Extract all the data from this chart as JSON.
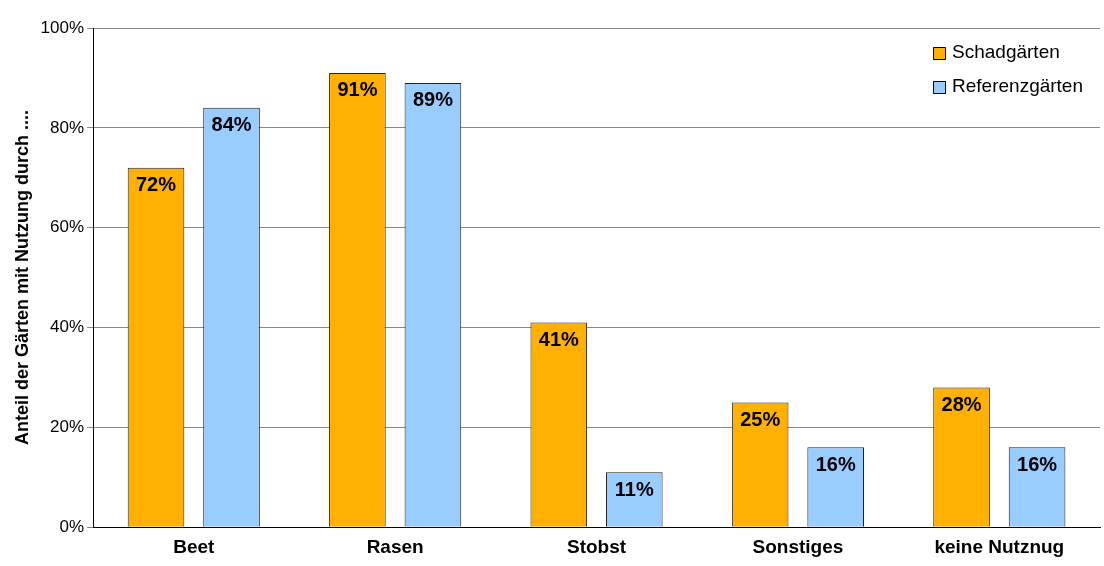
{
  "chart_data": {
    "type": "bar",
    "ylabel": "Anteil der Gärten mit Nutzung durch ....",
    "categories": [
      "Beet",
      "Rasen",
      "Stobst",
      "Sonstiges",
      "keine Nutznug"
    ],
    "series": [
      {
        "name": "Schadgärten",
        "color": "#ffb000",
        "values": [
          72,
          91,
          41,
          25,
          28
        ],
        "value_labels": [
          "72%",
          "91%",
          "41%",
          "25%",
          "28%"
        ]
      },
      {
        "name": "Referenzgärten",
        "color": "#99ccff",
        "values": [
          84,
          89,
          11,
          16,
          16
        ],
        "value_labels": [
          "84%",
          "89%",
          "11%",
          "16%",
          "16%"
        ]
      }
    ],
    "ylim": [
      0,
      100
    ],
    "yticks": [
      {
        "value": 0,
        "label": "0%"
      },
      {
        "value": 20,
        "label": "20%"
      },
      {
        "value": 40,
        "label": "40%"
      },
      {
        "value": 60,
        "label": "60%"
      },
      {
        "value": 80,
        "label": "80%"
      },
      {
        "value": 100,
        "label": "100%"
      }
    ],
    "grid": "y",
    "legend": "top right"
  }
}
